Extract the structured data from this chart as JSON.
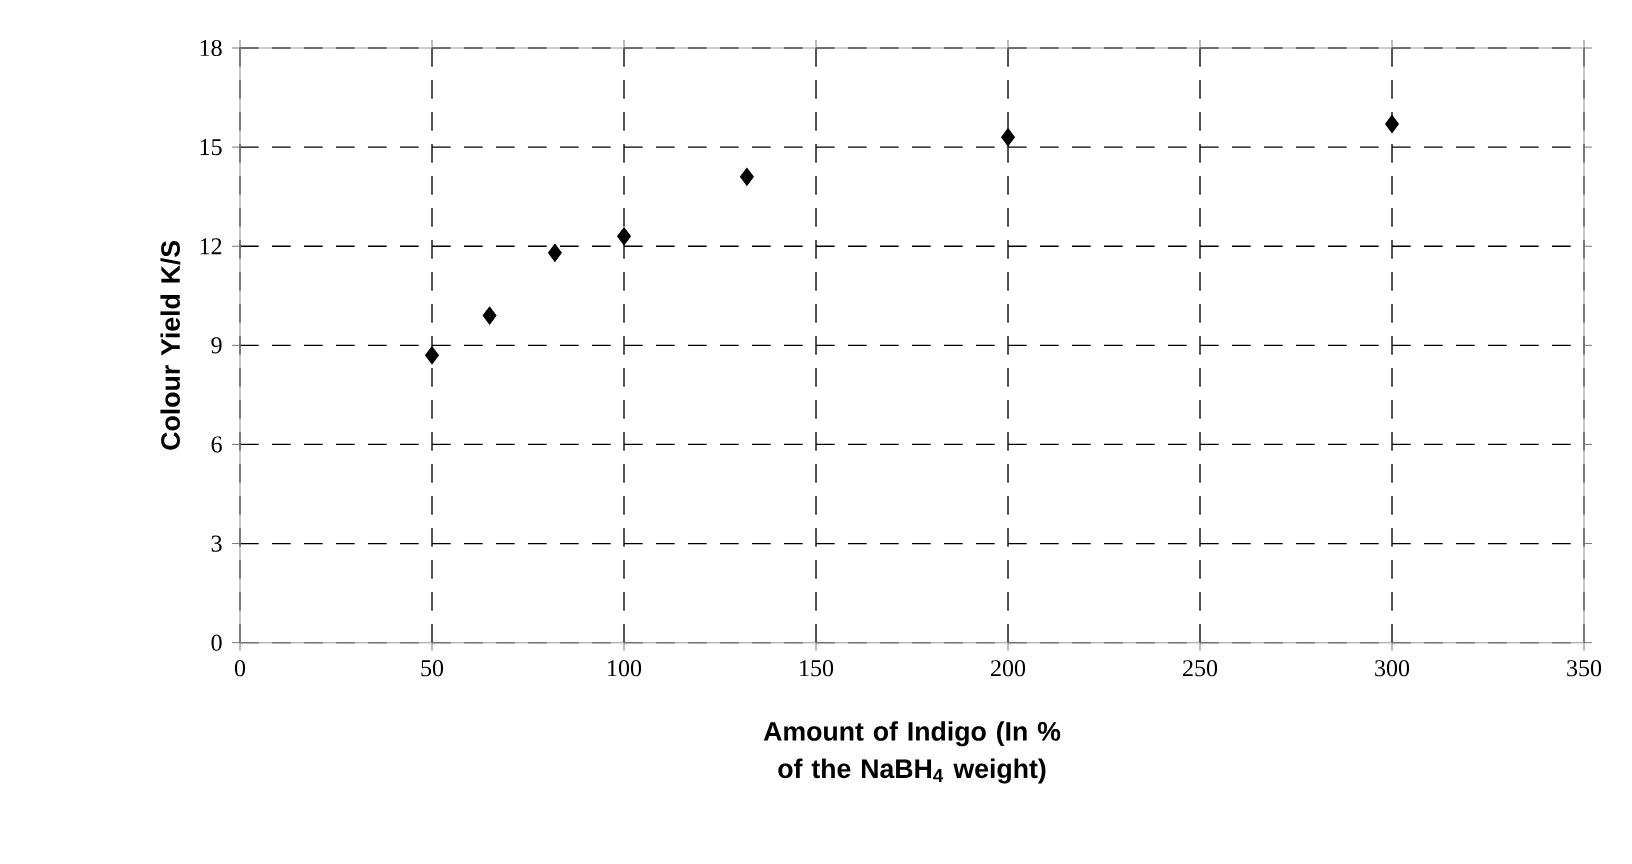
{
  "chart_data": {
    "type": "scatter",
    "xlabel": "Amount of Indigo (In % of the NaBH$_{4}$ weight)",
    "ylabel": "Colour Yield K/S",
    "x": [
      50,
      65,
      82,
      100,
      132,
      200,
      300
    ],
    "values": [
      8.7,
      9.9,
      11.8,
      12.3,
      14.1,
      15.3,
      15.7
    ],
    "color": "#000000",
    "marker": "diamond",
    "xlim": [
      0,
      350
    ],
    "xticks": [
      0,
      50,
      100,
      150,
      200,
      250,
      300,
      350
    ],
    "ylim": [
      0,
      18
    ],
    "yticks": [
      0,
      3,
      6,
      9,
      12,
      15,
      18
    ],
    "grid": true
  }
}
